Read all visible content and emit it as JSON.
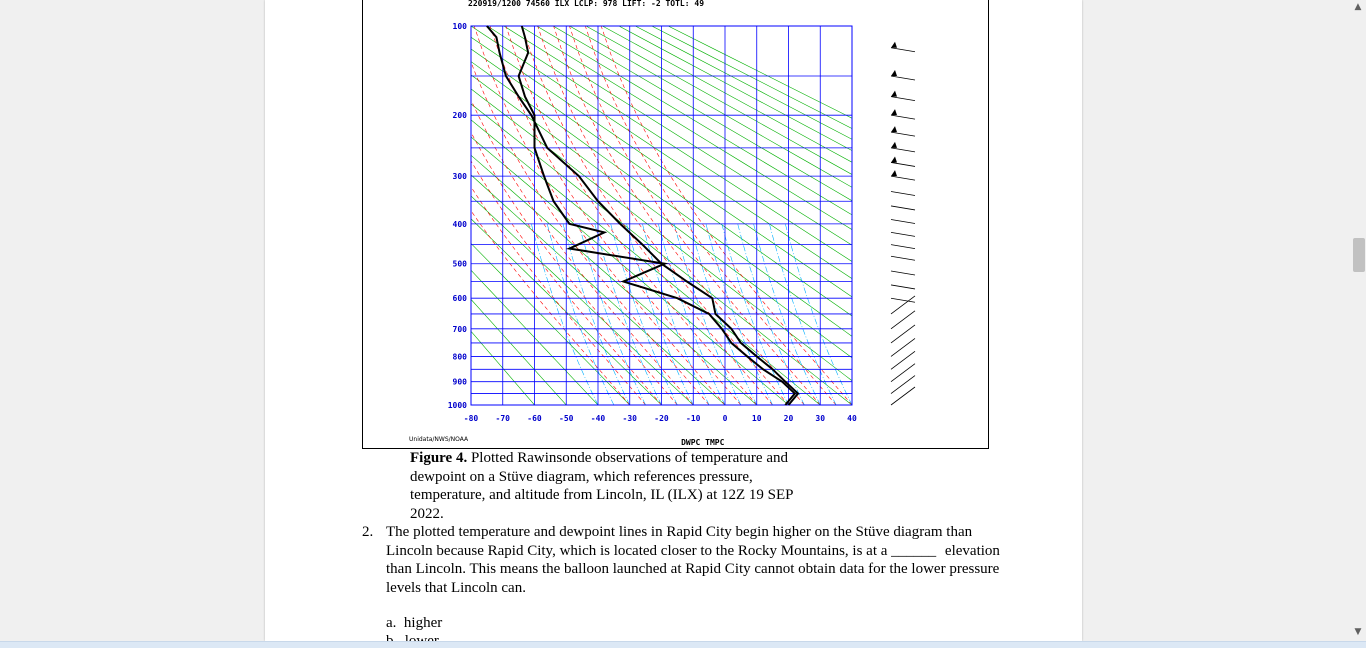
{
  "chart_data": {
    "type": "line",
    "title": "",
    "header_text": "220919/1200 74560   ILX   LCLP:   978 LIFT:   -2 TOTL:   49",
    "xlabel": "DWPC TMPC",
    "source_label": "Unidata/NWS/NOAA",
    "x_ticks": [
      -80,
      -70,
      -60,
      -50,
      -40,
      -30,
      -20,
      -10,
      0,
      10,
      20,
      30,
      40
    ],
    "y_ticks": [
      100,
      200,
      300,
      400,
      500,
      600,
      700,
      800,
      900,
      1000
    ],
    "xlim": [
      -80,
      40
    ],
    "ylim": [
      1000,
      100
    ],
    "y_scale": "pressure (p^0.286)",
    "series": [
      {
        "name": "TMPC",
        "points": [
          [
            20,
            1000
          ],
          [
            23,
            950
          ],
          [
            19,
            900
          ],
          [
            15,
            850
          ],
          [
            10,
            800
          ],
          [
            5,
            750
          ],
          [
            2,
            700
          ],
          [
            -3,
            650
          ],
          [
            -4,
            600
          ],
          [
            -12,
            550
          ],
          [
            -20,
            500
          ],
          [
            -26,
            450
          ],
          [
            -33,
            400
          ],
          [
            -40,
            350
          ],
          [
            -46,
            300
          ],
          [
            -56,
            250
          ],
          [
            -61,
            200
          ],
          [
            -65,
            175
          ],
          [
            -69,
            150
          ],
          [
            -71,
            125
          ],
          [
            -72,
            110
          ],
          [
            -75,
            100
          ]
        ],
        "color": "#000000"
      },
      {
        "name": "DWPC",
        "points": [
          [
            19,
            1000
          ],
          [
            22,
            950
          ],
          [
            18,
            900
          ],
          [
            12,
            850
          ],
          [
            7,
            800
          ],
          [
            2,
            750
          ],
          [
            -1,
            700
          ],
          [
            -5,
            650
          ],
          [
            -15,
            600
          ],
          [
            -32,
            550
          ],
          [
            -19,
            500
          ],
          [
            -49,
            460
          ],
          [
            -38,
            420
          ],
          [
            -49,
            400
          ],
          [
            -54,
            350
          ],
          [
            -57,
            300
          ],
          [
            -60,
            250
          ],
          [
            -60,
            200
          ],
          [
            -63,
            175
          ],
          [
            -65,
            150
          ],
          [
            -62,
            125
          ],
          [
            -63,
            110
          ],
          [
            -64,
            100
          ]
        ],
        "color": "#000000"
      }
    ],
    "grid": true,
    "wind_barbs": "right-side column"
  },
  "caption": {
    "label": "Figure 4.",
    "text": "Plotted Rawinsonde observations of temperature and dewpoint on a Stüve diagram, which references pressure, temperature, and altitude from Lincoln, IL (ILX) at 12Z 19 SEP 2022."
  },
  "question": {
    "number": "2.",
    "text_before": "The plotted temperature and dewpoint lines in Rapid City begin higher on the Stüve diagram than Lincoln because Rapid City, which is located closer to the Rocky Mountains, is at a",
    "blank": "______",
    "text_after": "elevation than Lincoln. This means the balloon launched at Rapid City cannot obtain data for the lower pressure levels that Lincoln can.",
    "options": [
      {
        "letter": "a.",
        "text": "higher"
      },
      {
        "letter": "b.",
        "text": "lower"
      }
    ]
  },
  "colors": {
    "grid": "#0000ff",
    "dry_adiabat": "#00b000",
    "moist_adiabat": "#ff0000",
    "mixing_ratio": "#00b0ff",
    "profile": "#000000"
  }
}
